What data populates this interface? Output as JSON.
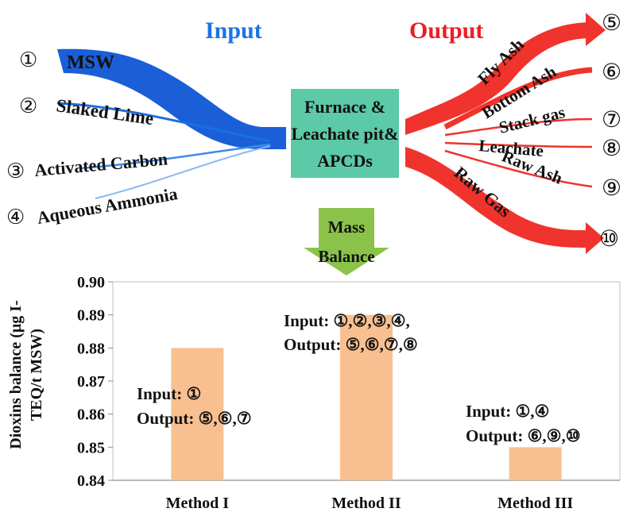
{
  "diagram": {
    "input_title": "Input",
    "output_title": "Output",
    "input_color": "#1a73e8",
    "output_color": "#ee1c25",
    "inputs": [
      {
        "num": "①",
        "label": "MSW"
      },
      {
        "num": "②",
        "label": "Slaked Lime"
      },
      {
        "num": "③",
        "label": "Activated Carbon"
      },
      {
        "num": "④",
        "label": "Aqueous Ammonia"
      }
    ],
    "process": {
      "lines": [
        "Furnace &",
        "Leachate pit&",
        "APCDs"
      ],
      "color": "#5cc9a7"
    },
    "outputs": [
      {
        "num": "⑤",
        "label": "Fly Ash"
      },
      {
        "num": "⑥",
        "label": "Bottom Ash"
      },
      {
        "num": "⑦",
        "label": "Stack gas"
      },
      {
        "num": "⑧",
        "label": "Leachate"
      },
      {
        "num": "⑨",
        "label": "Raw Ash"
      },
      {
        "num": "⑩",
        "label": "Raw Gas"
      }
    ],
    "arrow_lines": [
      "Mass",
      "Balance"
    ],
    "arrow_color": "#8bc34a"
  },
  "chart_data": {
    "type": "bar",
    "categories": [
      "Method I",
      "Method II",
      "Method III"
    ],
    "values": [
      0.88,
      0.89,
      0.85
    ],
    "bar_color": "#f8c090",
    "ylabel_lines": [
      "Dioxins balance (μg I-",
      "TEQ/t MSW)"
    ],
    "ylim": [
      0.84,
      0.9
    ],
    "yticks": [
      "0.84",
      "0.85",
      "0.86",
      "0.87",
      "0.88",
      "0.89",
      "0.90"
    ],
    "annotations": [
      {
        "input": "Input: ①",
        "output": "Output: ⑤,⑥,⑦"
      },
      {
        "input": "Input: ①,②,③,④,",
        "output": "Output: ⑤,⑥,⑦,⑧"
      },
      {
        "input": "Input: ①,④",
        "output": "Output: ⑥,⑨,⑩"
      }
    ]
  }
}
